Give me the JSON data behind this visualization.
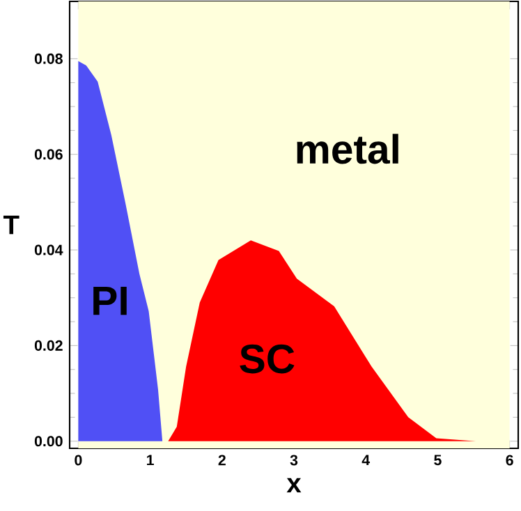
{
  "chart_data": {
    "type": "area",
    "xlabel": "x",
    "ylabel": "T",
    "xlim": [
      -0.12,
      6.12
    ],
    "ylim": [
      -0.0015,
      0.092
    ],
    "xticks": [
      0,
      1,
      2,
      3,
      4,
      5,
      6
    ],
    "yticks": [
      {
        "value": 0,
        "label": "0.00"
      },
      {
        "value": 0.02,
        "label": "0.02"
      },
      {
        "value": 0.04,
        "label": "0.04"
      },
      {
        "value": 0.06,
        "label": "0.06"
      },
      {
        "value": 0.08,
        "label": "0.08"
      }
    ],
    "bands": [
      {
        "axis": "x",
        "from": 0,
        "to": 6,
        "label": "metal",
        "color": "#ffffdc"
      }
    ],
    "series": [
      {
        "name": "PI",
        "color": "#5050f5",
        "x": [
          0,
          0.11,
          0.27,
          0.46,
          0.66,
          0.85,
          0.98,
          1.11,
          1.17
        ],
        "values": [
          0.0795,
          0.0786,
          0.0752,
          0.064,
          0.0495,
          0.035,
          0.0272,
          0.0108,
          0
        ]
      },
      {
        "name": "SC",
        "color": "#ff0000",
        "x": [
          1.25,
          1.37,
          1.5,
          1.69,
          1.95,
          2.4,
          2.79,
          3.04,
          3.56,
          4.08,
          4.59,
          4.98,
          5.53
        ],
        "values": [
          0,
          0.003,
          0.0156,
          0.029,
          0.0379,
          0.042,
          0.0398,
          0.034,
          0.0282,
          0.0156,
          0.005,
          0.0006,
          0
        ]
      }
    ]
  }
}
